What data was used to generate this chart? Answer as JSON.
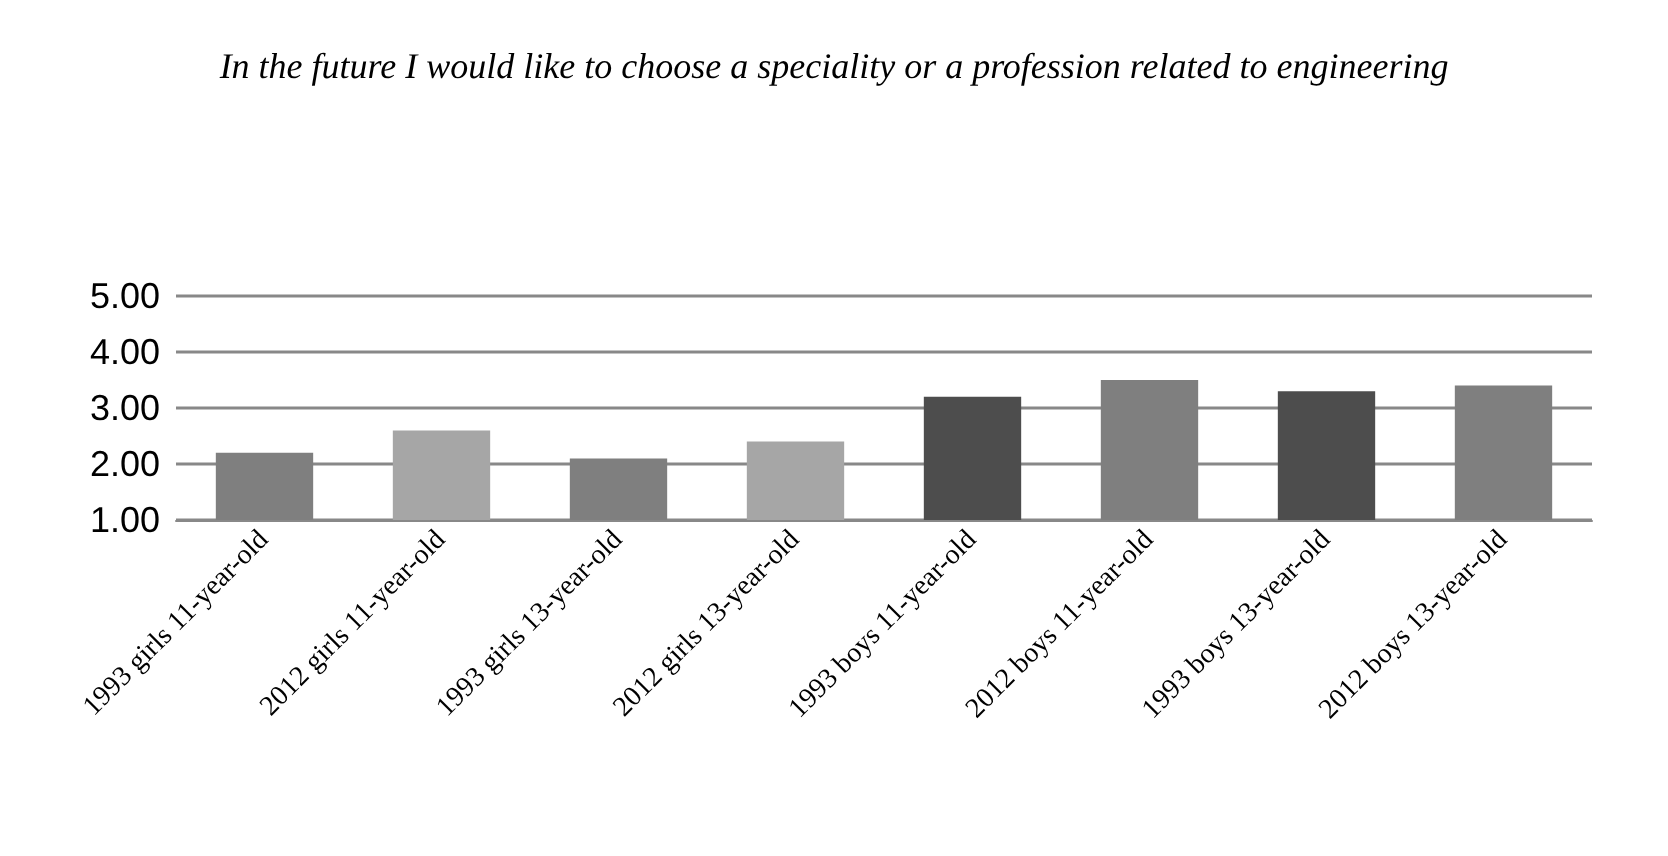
{
  "chart_data": {
    "type": "bar",
    "title": "In the future I would like to choose a speciality or a profession related to engineering",
    "categories": [
      "1993 girls 11-year-old",
      "2012 girls 11-year-old",
      "1993 girls 13-year-old",
      "2012 girls 13-year-old",
      "1993 boys 11-year-old",
      "2012 boys 11-year-old",
      "1993 boys 13-year-old",
      "2012 boys 13-year-old"
    ],
    "values": [
      2.2,
      2.6,
      2.1,
      2.4,
      3.2,
      3.5,
      3.3,
      3.4
    ],
    "colors": [
      "#7f7f7f",
      "#a6a6a6",
      "#7f7f7f",
      "#a6a6a6",
      "#4d4d4d",
      "#7f7f7f",
      "#4d4d4d",
      "#7f7f7f"
    ],
    "ylim": [
      1,
      5
    ],
    "yticks": [
      {
        "value": 1,
        "label": "1.00"
      },
      {
        "value": 2,
        "label": "2.00"
      },
      {
        "value": 3,
        "label": "3.00"
      },
      {
        "value": 4,
        "label": "4.00"
      },
      {
        "value": 5,
        "label": "5.00"
      }
    ],
    "grid": "y"
  }
}
